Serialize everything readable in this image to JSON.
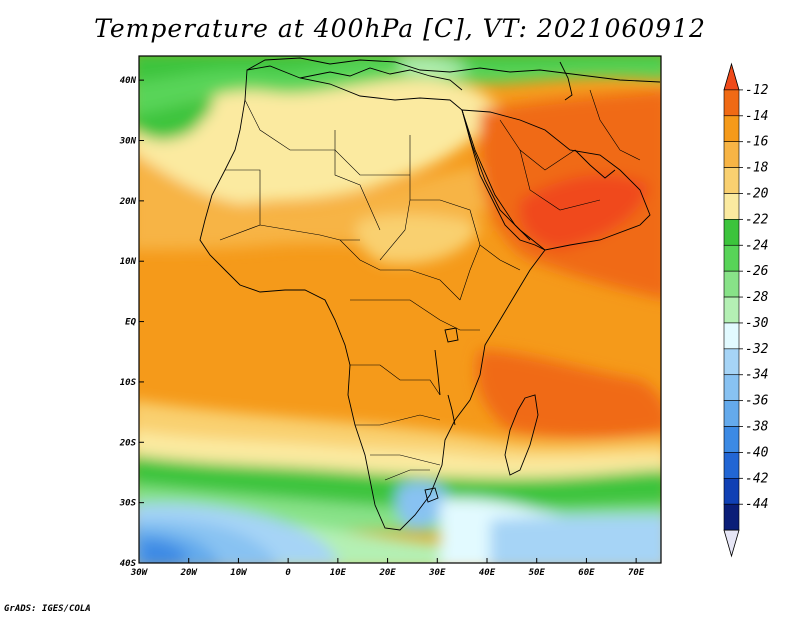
{
  "title": "Temperature at 400hPa [C], VT: 2021060912",
  "credit": "GrADS: IGES/COLA",
  "lon_labels": [
    "30W",
    "20W",
    "10W",
    "0",
    "10E",
    "20E",
    "30E",
    "40E",
    "50E",
    "60E",
    "70E"
  ],
  "lon_values": [
    -30,
    -20,
    -10,
    0,
    10,
    20,
    30,
    40,
    50,
    60,
    70
  ],
  "lat_labels": [
    "40N",
    "30N",
    "20N",
    "10N",
    "EQ",
    "10S",
    "20S",
    "30S",
    "40S"
  ],
  "lat_values": [
    40,
    30,
    20,
    10,
    0,
    -10,
    -20,
    -30,
    -40
  ],
  "extent": {
    "lon_min": -30,
    "lon_max": 75,
    "lat_min": -40,
    "lat_max": 44
  },
  "colorbar": {
    "labels": [
      "-12",
      "-14",
      "-16",
      "-18",
      "-20",
      "-22",
      "-24",
      "-26",
      "-28",
      "-30",
      "-32",
      "-34",
      "-36",
      "-38",
      "-40",
      "-42",
      "-44"
    ],
    "colors": [
      "#f04a1a",
      "#f06a14",
      "#f59a1a",
      "#f7b445",
      "#f9d070",
      "#fbeaa0",
      "#3cc43c",
      "#58d458",
      "#88e288",
      "#b4f0b4",
      "#e2faff",
      "#a6d4f6",
      "#88c2f2",
      "#64aaec",
      "#3c8ae4",
      "#2266d4",
      "#1040b4",
      "#0b1e78",
      "#e6e6f6"
    ]
  }
}
